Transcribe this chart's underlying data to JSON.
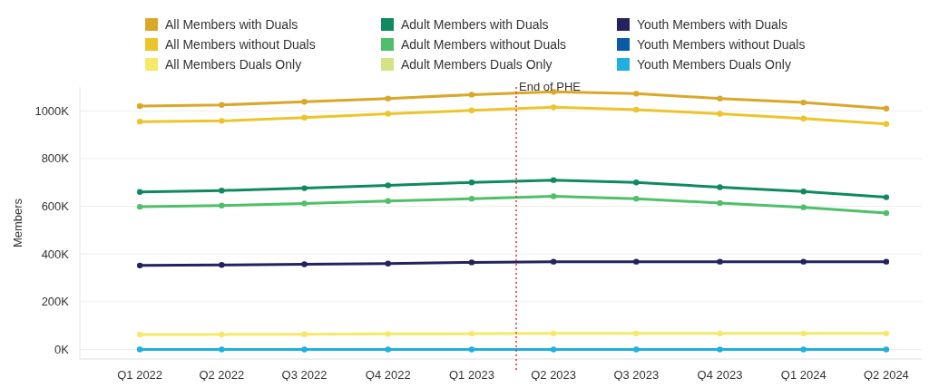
{
  "chart_data": {
    "type": "line",
    "ylabel": "Members",
    "x": [
      "2022-01",
      "2022-04",
      "2022-07",
      "2022-10",
      "2023-01",
      "2023-04",
      "2023-07",
      "2023-10",
      "2024-01",
      "2024-04"
    ],
    "xlim": [
      "2021-10-27",
      "2024-05-10"
    ],
    "xticks": [
      {
        "value": "2022-01",
        "label": "Q1 2022"
      },
      {
        "value": "2022-04",
        "label": "Q2 2022"
      },
      {
        "value": "2022-07",
        "label": "Q3 2022"
      },
      {
        "value": "2022-10",
        "label": "Q4 2022"
      },
      {
        "value": "2023-01",
        "label": "Q1 2023"
      },
      {
        "value": "2023-04",
        "label": "Q2 2023"
      },
      {
        "value": "2023-07",
        "label": "Q3 2023"
      },
      {
        "value": "2023-10",
        "label": "Q4 2023"
      },
      {
        "value": "2024-01",
        "label": "Q1 2024"
      },
      {
        "value": "2024-04",
        "label": "Q2 2024"
      }
    ],
    "series": [
      {
        "name": "All Members with Duals",
        "color": "#d9a82a",
        "values": [
          1020,
          1025,
          1038,
          1052,
          1068,
          1080,
          1072,
          1052,
          1035,
          1010
        ]
      },
      {
        "name": "All Members without Duals",
        "color": "#ecc52c",
        "values": [
          955,
          958,
          972,
          988,
          1002,
          1015,
          1005,
          988,
          968,
          945
        ]
      },
      {
        "name": "All Members Duals Only",
        "color": "#f5e86a",
        "values": [
          63,
          63,
          64,
          65,
          66,
          67,
          67,
          67,
          67,
          67
        ]
      },
      {
        "name": "Adult Members with Duals",
        "color": "#0f8a5f",
        "values": [
          660,
          666,
          676,
          688,
          700,
          710,
          700,
          680,
          662,
          638
        ]
      },
      {
        "name": "Adult Members without Duals",
        "color": "#4fbf6a",
        "values": [
          598,
          603,
          612,
          622,
          632,
          642,
          632,
          614,
          596,
          572
        ]
      },
      {
        "name": "Adult Members Duals Only",
        "color": "#d4e384",
        "values": [
          null,
          null,
          null,
          null,
          null,
          null,
          null,
          null,
          null,
          null
        ]
      },
      {
        "name": "Youth Members with Duals",
        "color": "#23235e",
        "values": [
          352,
          354,
          357,
          360,
          365,
          368,
          368,
          368,
          368,
          368
        ]
      },
      {
        "name": "Youth Members without Duals",
        "color": "#0a5aa8",
        "values": [
          null,
          null,
          null,
          null,
          null,
          null,
          null,
          null,
          null,
          null
        ]
      },
      {
        "name": "Youth Members Duals Only",
        "color": "#1fb0e0",
        "values": [
          0,
          0,
          0,
          0,
          0,
          0,
          0,
          0,
          0,
          0
        ]
      }
    ],
    "ylim": [
      -40,
      1100
    ],
    "yticks": [
      {
        "value": 0,
        "label": "0K"
      },
      {
        "value": 200,
        "label": "200K"
      },
      {
        "value": 400,
        "label": "400K"
      },
      {
        "value": 600,
        "label": "600K"
      },
      {
        "value": 800,
        "label": "800K"
      },
      {
        "value": 1000,
        "label": "1000K"
      }
    ],
    "ref_lines": [
      {
        "axis": "x",
        "value": "2023-02-19",
        "label": "End of PHE",
        "color": "#d9352a",
        "line_style": "dotted"
      }
    ],
    "grid": "y",
    "legend": "top",
    "marker": "circle",
    "line_style": "solid"
  }
}
